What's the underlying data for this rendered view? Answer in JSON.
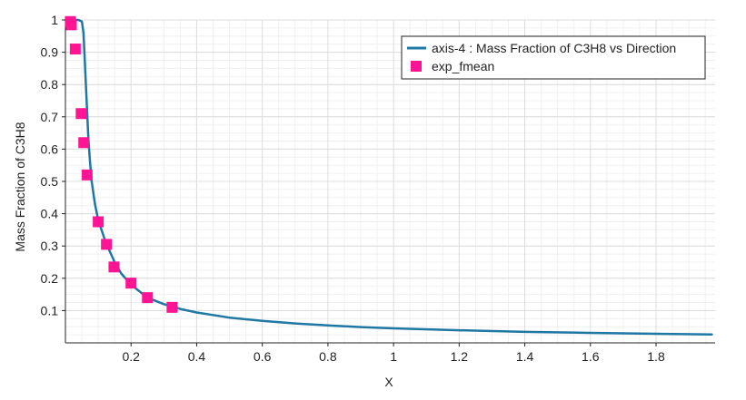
{
  "chart_data": {
    "type": "line",
    "xlabel": "X",
    "ylabel": "Mass Fraction of C3H8",
    "xlim": [
      0.0,
      1.98
    ],
    "ylim": [
      0.0,
      1.0
    ],
    "x_ticks": [
      0.2,
      0.4,
      0.6,
      0.8,
      1.0,
      1.2,
      1.4,
      1.6,
      1.8
    ],
    "x_tick_labels": [
      "0.2",
      "0.4",
      "0.6",
      "0.8",
      "1",
      "1.2",
      "1.4",
      "1.6",
      "1.8"
    ],
    "y_ticks": [
      0.1,
      0.2,
      0.3,
      0.4,
      0.5,
      0.6,
      0.7,
      0.8,
      0.9,
      1.0
    ],
    "y_tick_labels": [
      "0.1",
      "0.2",
      "0.3",
      "0.4",
      "0.5",
      "0.6",
      "0.7",
      "0.8",
      "0.9",
      "1"
    ],
    "grid": true,
    "minor_grid": true,
    "legend_position": "top-right",
    "series": [
      {
        "name": "axis-4 : Mass Fraction of C3H8 vs Direction",
        "kind": "line",
        "color": "#1f77a4",
        "x": [
          0.0,
          0.02,
          0.04,
          0.05,
          0.055,
          0.06,
          0.065,
          0.07,
          0.075,
          0.08,
          0.09,
          0.1,
          0.11,
          0.12,
          0.13,
          0.15,
          0.17,
          0.2,
          0.25,
          0.3,
          0.35,
          0.4,
          0.5,
          0.6,
          0.7,
          0.8,
          0.9,
          1.0,
          1.2,
          1.4,
          1.6,
          1.8,
          1.97
        ],
        "y": [
          1.0,
          1.0,
          1.0,
          0.995,
          0.96,
          0.85,
          0.74,
          0.63,
          0.56,
          0.5,
          0.43,
          0.38,
          0.35,
          0.32,
          0.295,
          0.25,
          0.215,
          0.18,
          0.14,
          0.12,
          0.105,
          0.094,
          0.078,
          0.068,
          0.06,
          0.054,
          0.049,
          0.045,
          0.039,
          0.034,
          0.031,
          0.028,
          0.026
        ]
      },
      {
        "name": "exp_fmean",
        "kind": "scatter",
        "color": "#ff1493",
        "x": [
          0.015,
          0.018,
          0.03,
          0.048,
          0.056,
          0.066,
          0.1,
          0.125,
          0.148,
          0.2,
          0.25,
          0.325
        ],
        "y": [
          0.995,
          0.985,
          0.91,
          0.71,
          0.62,
          0.52,
          0.375,
          0.305,
          0.235,
          0.185,
          0.14,
          0.11
        ]
      }
    ]
  }
}
